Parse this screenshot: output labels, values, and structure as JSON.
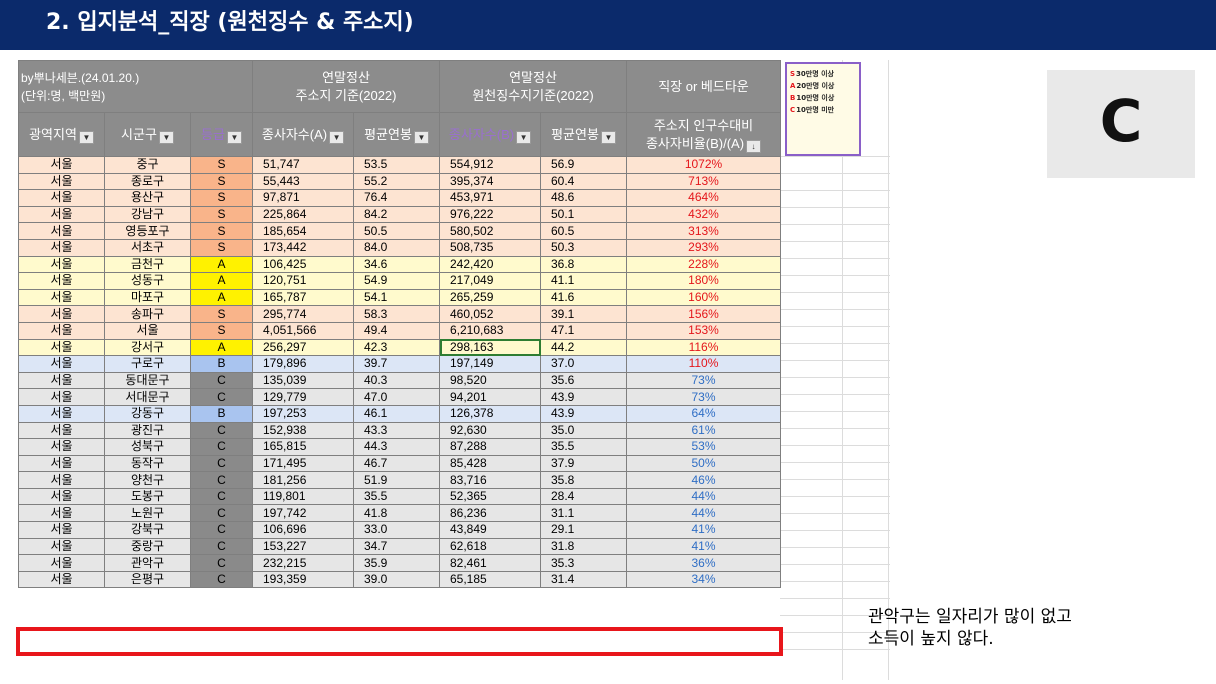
{
  "header": {
    "title": "2. 입지분석_직장 (원천징수 & 주소지)"
  },
  "table": {
    "source_line1": "by뿌나세븐.(24.01.20.)",
    "source_line2": "(단위:명, 백만원)",
    "group_address_line1": "연말정산",
    "group_address_line2": "주소지 기준(2022)",
    "group_withholding_line1": "연말정산",
    "group_withholding_line2": "원천징수지기준(2022)",
    "group_type": "직장 or 베드타운",
    "col_region": "광역지역",
    "col_district": "시군구",
    "col_grade": "등급",
    "col_workers_a": "종사자수(A)",
    "col_salary_a": "평균연봉",
    "col_workers_b": "종사자수(B)",
    "col_salary_b": "평균연봉",
    "col_ratio_line1": "주소지 인구수대비",
    "col_ratio_line2": "종사자비율(B)/(A)",
    "rows": [
      {
        "region": "서울",
        "district": "중구",
        "grade": "S",
        "wa": "51,747",
        "sa": "53.5",
        "wb": "554,912",
        "sb": "56.9",
        "ratio": "1072%"
      },
      {
        "region": "서울",
        "district": "종로구",
        "grade": "S",
        "wa": "55,443",
        "sa": "55.2",
        "wb": "395,374",
        "sb": "60.4",
        "ratio": "713%"
      },
      {
        "region": "서울",
        "district": "용산구",
        "grade": "S",
        "wa": "97,871",
        "sa": "76.4",
        "wb": "453,971",
        "sb": "48.6",
        "ratio": "464%"
      },
      {
        "region": "서울",
        "district": "강남구",
        "grade": "S",
        "wa": "225,864",
        "sa": "84.2",
        "wb": "976,222",
        "sb": "50.1",
        "ratio": "432%"
      },
      {
        "region": "서울",
        "district": "영등포구",
        "grade": "S",
        "wa": "185,654",
        "sa": "50.5",
        "wb": "580,502",
        "sb": "60.5",
        "ratio": "313%"
      },
      {
        "region": "서울",
        "district": "서초구",
        "grade": "S",
        "wa": "173,442",
        "sa": "84.0",
        "wb": "508,735",
        "sb": "50.3",
        "ratio": "293%"
      },
      {
        "region": "서울",
        "district": "금천구",
        "grade": "A",
        "wa": "106,425",
        "sa": "34.6",
        "wb": "242,420",
        "sb": "36.8",
        "ratio": "228%"
      },
      {
        "region": "서울",
        "district": "성동구",
        "grade": "A",
        "wa": "120,751",
        "sa": "54.9",
        "wb": "217,049",
        "sb": "41.1",
        "ratio": "180%"
      },
      {
        "region": "서울",
        "district": "마포구",
        "grade": "A",
        "wa": "165,787",
        "sa": "54.1",
        "wb": "265,259",
        "sb": "41.6",
        "ratio": "160%"
      },
      {
        "region": "서울",
        "district": "송파구",
        "grade": "S",
        "wa": "295,774",
        "sa": "58.3",
        "wb": "460,052",
        "sb": "39.1",
        "ratio": "156%"
      },
      {
        "region": "서울",
        "district": "서울",
        "grade": "S",
        "wa": "4,051,566",
        "sa": "49.4",
        "wb": "6,210,683",
        "sb": "47.1",
        "ratio": "153%"
      },
      {
        "region": "서울",
        "district": "강서구",
        "grade": "A",
        "wa": "256,297",
        "sa": "42.3",
        "wb": "298,163",
        "sb": "44.2",
        "ratio": "116%"
      },
      {
        "region": "서울",
        "district": "구로구",
        "grade": "B",
        "wa": "179,896",
        "sa": "39.7",
        "wb": "197,149",
        "sb": "37.0",
        "ratio": "110%"
      },
      {
        "region": "서울",
        "district": "동대문구",
        "grade": "C",
        "wa": "135,039",
        "sa": "40.3",
        "wb": "98,520",
        "sb": "35.6",
        "ratio": "73%"
      },
      {
        "region": "서울",
        "district": "서대문구",
        "grade": "C",
        "wa": "129,779",
        "sa": "47.0",
        "wb": "94,201",
        "sb": "43.9",
        "ratio": "73%"
      },
      {
        "region": "서울",
        "district": "강동구",
        "grade": "B",
        "wa": "197,253",
        "sa": "46.1",
        "wb": "126,378",
        "sb": "43.9",
        "ratio": "64%"
      },
      {
        "region": "서울",
        "district": "광진구",
        "grade": "C",
        "wa": "152,938",
        "sa": "43.3",
        "wb": "92,630",
        "sb": "35.0",
        "ratio": "61%"
      },
      {
        "region": "서울",
        "district": "성북구",
        "grade": "C",
        "wa": "165,815",
        "sa": "44.3",
        "wb": "87,288",
        "sb": "35.5",
        "ratio": "53%"
      },
      {
        "region": "서울",
        "district": "동작구",
        "grade": "C",
        "wa": "171,495",
        "sa": "46.7",
        "wb": "85,428",
        "sb": "37.9",
        "ratio": "50%"
      },
      {
        "region": "서울",
        "district": "양천구",
        "grade": "C",
        "wa": "181,256",
        "sa": "51.9",
        "wb": "83,716",
        "sb": "35.8",
        "ratio": "46%"
      },
      {
        "region": "서울",
        "district": "도봉구",
        "grade": "C",
        "wa": "119,801",
        "sa": "35.5",
        "wb": "52,365",
        "sb": "28.4",
        "ratio": "44%"
      },
      {
        "region": "서울",
        "district": "노원구",
        "grade": "C",
        "wa": "197,742",
        "sa": "41.8",
        "wb": "86,236",
        "sb": "31.1",
        "ratio": "44%"
      },
      {
        "region": "서울",
        "district": "강북구",
        "grade": "C",
        "wa": "106,696",
        "sa": "33.0",
        "wb": "43,849",
        "sb": "29.1",
        "ratio": "41%"
      },
      {
        "region": "서울",
        "district": "중랑구",
        "grade": "C",
        "wa": "153,227",
        "sa": "34.7",
        "wb": "62,618",
        "sb": "31.8",
        "ratio": "41%"
      },
      {
        "region": "서울",
        "district": "관악구",
        "grade": "C",
        "wa": "232,215",
        "sa": "35.9",
        "wb": "82,461",
        "sb": "35.3",
        "ratio": "36%"
      },
      {
        "region": "서울",
        "district": "은평구",
        "grade": "C",
        "wa": "193,359",
        "sa": "39.0",
        "wb": "65,185",
        "sb": "31.4",
        "ratio": "34%"
      }
    ]
  },
  "legend": [
    {
      "key": "S",
      "text": "30만명 이상"
    },
    {
      "key": "A",
      "text": "20만명 이상"
    },
    {
      "key": "B",
      "text": "10만명 이상"
    },
    {
      "key": "C",
      "text": "10만명 미만"
    }
  ],
  "badge": {
    "letter": "C"
  },
  "note": {
    "line1": "관악구는 일자리가 많이 없고",
    "line2": "소득이 높지 않다."
  },
  "colors": {
    "title_bg": "#0b2a6b",
    "header_gray": "#8c8c8c",
    "grade_S": "#f9b48a",
    "grade_A": "#fff200",
    "grade_B": "#a9c4ef",
    "grade_C": "#8a8a8a",
    "row_orange": "#fde4d2",
    "row_yellow": "#fffacd",
    "row_blue": "#dce6f6",
    "row_gray": "#e6e6e6",
    "ratio_red": "#e4161b",
    "ratio_blue": "#2f6ec5",
    "highlight": "#e8161b"
  }
}
